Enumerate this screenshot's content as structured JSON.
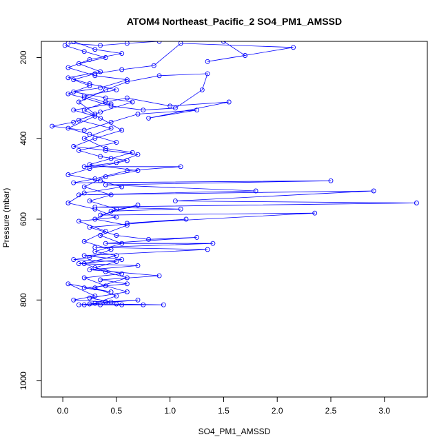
{
  "chart_data": {
    "type": "line",
    "title": "ATOM4 Northeast_Pacific_2 SO4_PM1_AMSSD",
    "xlabel": "SO4_PM1_AMSSD",
    "ylabel": "Pressure (mbar)",
    "xlim": [
      -0.2,
      3.4
    ],
    "ylim": [
      1040,
      160
    ],
    "y_reversed": true,
    "x_ticks": [
      0.0,
      0.5,
      1.0,
      1.5,
      2.0,
      2.5,
      3.0
    ],
    "x_tick_labels": [
      "0.0",
      "0.5",
      "1.0",
      "1.5",
      "2.0",
      "2.5",
      "3.0"
    ],
    "y_ticks": [
      200,
      400,
      600,
      800,
      1000
    ],
    "y_tick_labels": [
      "200",
      "400",
      "600",
      "800",
      "1000"
    ],
    "grid": false,
    "legend": "none",
    "marker": "open-circle",
    "color": "#0000ff",
    "series": [
      {
        "points": [
          [
            0.05,
            165
          ],
          [
            0.35,
            170
          ],
          [
            0.6,
            165
          ],
          [
            0.9,
            160
          ],
          [
            1.5,
            160
          ],
          [
            1.7,
            195
          ],
          [
            1.35,
            210
          ],
          [
            2.15,
            175
          ],
          [
            1.1,
            165
          ],
          [
            0.85,
            220
          ],
          [
            0.55,
            230
          ],
          [
            0.3,
            240
          ],
          [
            0.1,
            255
          ],
          [
            0.25,
            270
          ],
          [
            0.05,
            290
          ],
          [
            0.2,
            300
          ],
          [
            0.45,
            320
          ],
          [
            0.75,
            330
          ],
          [
            1.05,
            325
          ],
          [
            1.3,
            280
          ],
          [
            1.35,
            240
          ],
          [
            0.9,
            245
          ],
          [
            0.6,
            260
          ],
          [
            0.4,
            280
          ],
          [
            0.15,
            310
          ],
          [
            0.3,
            340
          ],
          [
            0.1,
            360
          ],
          [
            -0.1,
            370
          ],
          [
            0.2,
            380
          ],
          [
            0.45,
            360
          ],
          [
            0.7,
            340
          ],
          [
            1.25,
            330
          ],
          [
            0.8,
            350
          ],
          [
            1.55,
            310
          ],
          [
            1.0,
            320
          ],
          [
            0.6,
            300
          ],
          [
            0.4,
            310
          ],
          [
            0.2,
            330
          ],
          [
            0.35,
            350
          ],
          [
            0.55,
            380
          ],
          [
            0.3,
            400
          ],
          [
            0.1,
            420
          ],
          [
            0.4,
            430
          ],
          [
            0.7,
            440
          ],
          [
            0.5,
            460
          ],
          [
            0.2,
            470
          ],
          [
            1.1,
            470
          ],
          [
            0.6,
            480
          ],
          [
            0.3,
            500
          ],
          [
            0.1,
            510
          ],
          [
            2.5,
            505
          ],
          [
            0.4,
            515
          ],
          [
            1.8,
            530
          ],
          [
            0.15,
            540
          ],
          [
            2.9,
            530
          ],
          [
            1.05,
            555
          ],
          [
            3.3,
            560
          ],
          [
            0.3,
            570
          ],
          [
            1.1,
            575
          ],
          [
            0.45,
            580
          ],
          [
            0.7,
            565
          ],
          [
            0.35,
            590
          ],
          [
            2.35,
            585
          ],
          [
            0.6,
            610
          ],
          [
            1.15,
            600
          ],
          [
            0.25,
            620
          ],
          [
            0.5,
            640
          ],
          [
            0.8,
            650
          ],
          [
            1.25,
            645
          ],
          [
            0.4,
            660
          ],
          [
            1.4,
            660
          ],
          [
            0.3,
            670
          ],
          [
            1.35,
            675
          ],
          [
            0.2,
            690
          ],
          [
            0.55,
            700
          ],
          [
            0.15,
            710
          ],
          [
            0.7,
            715
          ],
          [
            0.25,
            725
          ],
          [
            0.9,
            740
          ],
          [
            0.35,
            750
          ],
          [
            0.6,
            760
          ],
          [
            0.2,
            770
          ],
          [
            0.45,
            780
          ],
          [
            0.05,
            760
          ],
          [
            0.3,
            790
          ],
          [
            0.1,
            800
          ],
          [
            0.4,
            805
          ],
          [
            0.7,
            800
          ],
          [
            0.25,
            810
          ],
          [
            0.5,
            810
          ],
          [
            0.94,
            812
          ],
          [
            0.2,
            812
          ]
        ]
      },
      {
        "points": [
          [
            0.02,
            170
          ],
          [
            0.2,
            185
          ],
          [
            0.4,
            200
          ],
          [
            0.15,
            215
          ],
          [
            0.35,
            235
          ],
          [
            0.05,
            250
          ],
          [
            0.25,
            265
          ],
          [
            0.5,
            280
          ],
          [
            0.2,
            295
          ],
          [
            0.45,
            315
          ],
          [
            0.1,
            330
          ],
          [
            0.3,
            345
          ],
          [
            0.05,
            375
          ],
          [
            0.25,
            390
          ],
          [
            0.5,
            410
          ],
          [
            0.15,
            430
          ],
          [
            0.35,
            445
          ],
          [
            0.6,
            455
          ],
          [
            0.25,
            475
          ],
          [
            0.05,
            490
          ],
          [
            0.35,
            505
          ],
          [
            0.55,
            520
          ],
          [
            0.2,
            535
          ],
          [
            0.05,
            560
          ],
          [
            0.3,
            575
          ],
          [
            0.5,
            595
          ],
          [
            0.15,
            605
          ],
          [
            0.4,
            630
          ],
          [
            0.2,
            655
          ],
          [
            0.45,
            675
          ],
          [
            0.25,
            695
          ],
          [
            0.1,
            700
          ],
          [
            0.5,
            705
          ],
          [
            0.3,
            720
          ],
          [
            0.55,
            735
          ],
          [
            0.2,
            745
          ],
          [
            0.4,
            765
          ],
          [
            0.6,
            780
          ],
          [
            0.25,
            795
          ],
          [
            0.45,
            805
          ],
          [
            0.15,
            812
          ],
          [
            0.35,
            812
          ],
          [
            0.55,
            812
          ],
          [
            0.75,
            812
          ]
        ]
      },
      {
        "points": [
          [
            0.1,
            160
          ],
          [
            0.3,
            180
          ],
          [
            0.55,
            190
          ],
          [
            0.25,
            205
          ],
          [
            0.05,
            225
          ],
          [
            0.3,
            245
          ],
          [
            0.6,
            255
          ],
          [
            0.35,
            275
          ],
          [
            0.1,
            285
          ],
          [
            0.4,
            300
          ],
          [
            0.65,
            310
          ],
          [
            0.35,
            335
          ],
          [
            0.15,
            355
          ],
          [
            0.45,
            375
          ],
          [
            0.2,
            400
          ],
          [
            0.4,
            425
          ],
          [
            0.65,
            435
          ],
          [
            0.45,
            450
          ],
          [
            0.25,
            465
          ],
          [
            0.7,
            480
          ],
          [
            0.4,
            495
          ],
          [
            0.2,
            520
          ],
          [
            0.45,
            540
          ],
          [
            0.25,
            555
          ],
          [
            0.5,
            575
          ],
          [
            0.3,
            600
          ],
          [
            0.6,
            615
          ],
          [
            0.35,
            640
          ],
          [
            0.55,
            660
          ],
          [
            0.3,
            680
          ],
          [
            0.5,
            690
          ],
          [
            0.2,
            710
          ],
          [
            0.4,
            730
          ],
          [
            0.6,
            745
          ],
          [
            0.3,
            770
          ],
          [
            0.5,
            790
          ],
          [
            0.3,
            808
          ]
        ]
      }
    ]
  }
}
